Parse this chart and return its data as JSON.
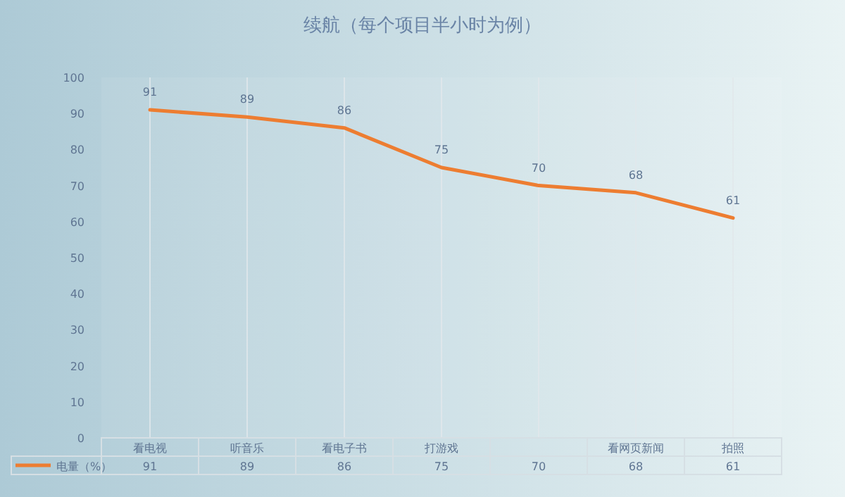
{
  "chart_data": {
    "type": "line",
    "title": "续航（每个项目半小时为例）",
    "categories": [
      "看电视",
      "听音乐",
      "看电子书",
      "打游戏",
      null,
      "看网页新闻",
      "拍照"
    ],
    "series": [
      {
        "name": "电量（%）",
        "color": "#ed7d31",
        "values": [
          91,
          89,
          86,
          75,
          70,
          68,
          61
        ],
        "value_labels": [
          "91",
          "89",
          "86",
          "75",
          "70",
          "68",
          "61"
        ]
      }
    ],
    "ylim": [
      0,
      100
    ],
    "yticks": [
      0,
      10,
      20,
      30,
      40,
      50,
      60,
      70,
      80,
      90,
      100
    ],
    "annotations": [
      "91",
      "89",
      "86",
      "75",
      "70",
      "68",
      "61"
    ],
    "grid": "x",
    "data_labels": true,
    "legend": "bottom",
    "marker": "none"
  }
}
